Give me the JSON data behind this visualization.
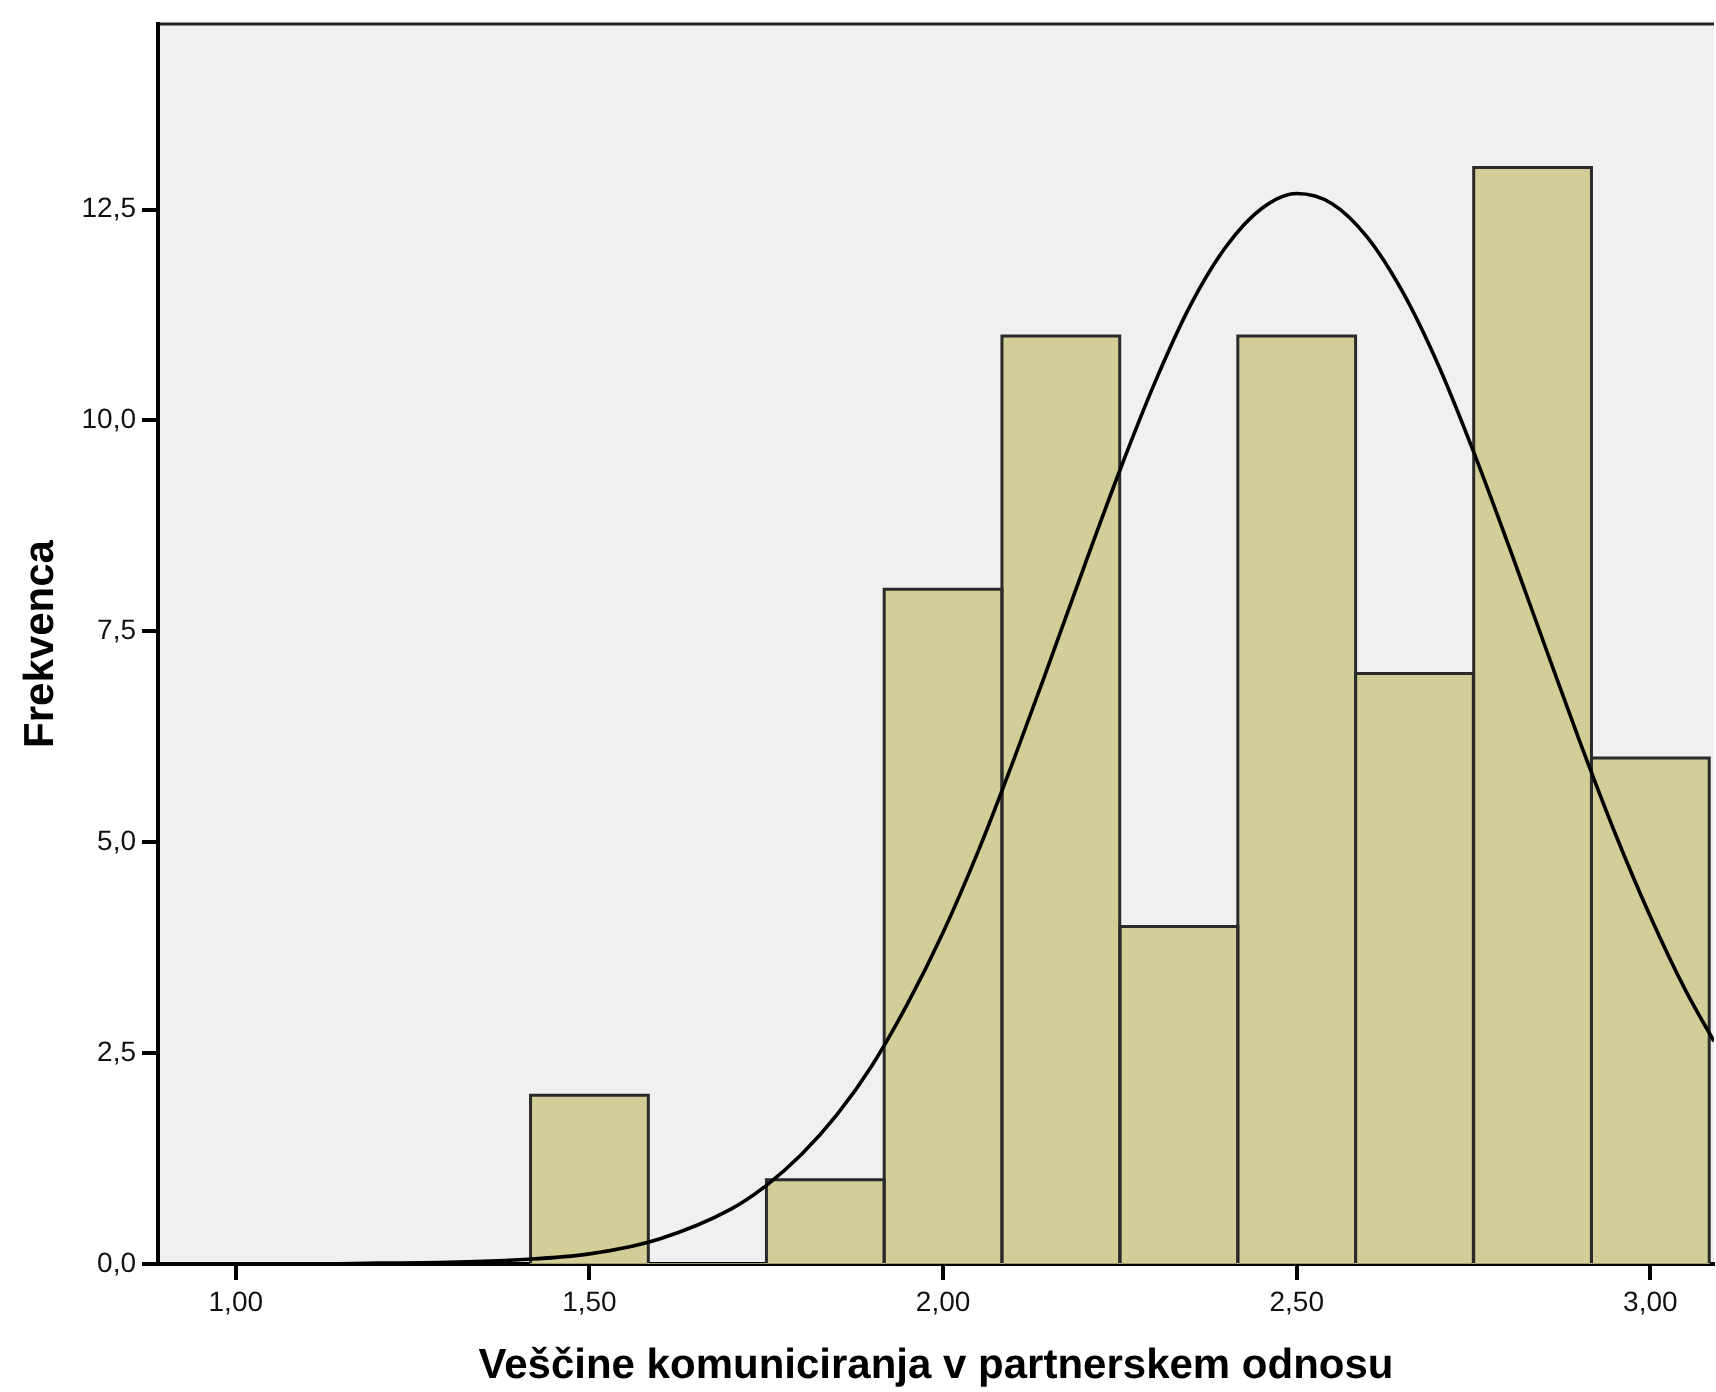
{
  "chart_data": {
    "type": "histogram",
    "xlabel": "Veščine komuniciranja v partnerskem odnosu",
    "ylabel": "Frekvenca",
    "bins": [
      1.417,
      1.583,
      1.75,
      1.917,
      2.083,
      2.25,
      2.417,
      2.583,
      2.75,
      2.917,
      3.083
    ],
    "series": [
      {
        "color": "#d3ce97",
        "values": [
          2,
          0,
          1,
          8,
          11,
          4,
          11,
          7,
          13,
          6
        ]
      },
      {
        "type": "line",
        "color": "#000000",
        "marker": "none",
        "x": [
          0.89,
          1.0,
          1.1,
          1.2,
          1.3,
          1.4,
          1.5,
          1.6,
          1.7,
          1.75,
          1.8,
          1.85,
          1.9,
          1.95,
          2.0,
          2.05,
          2.1,
          2.15,
          2.2,
          2.25,
          2.3,
          2.35,
          2.4,
          2.45,
          2.5,
          2.55,
          2.6,
          2.65,
          2.7,
          2.75,
          2.8,
          2.85,
          2.9,
          2.95,
          3.0,
          3.05,
          3.09
        ],
        "values": [
          0,
          0,
          0,
          0.01,
          0.02,
          0.05,
          0.12,
          0.3,
          0.65,
          0.93,
          1.3,
          1.77,
          2.36,
          3.09,
          3.93,
          4.9,
          5.98,
          7.12,
          8.28,
          9.41,
          10.46,
          11.37,
          12.06,
          12.51,
          12.69,
          12.57,
          12.17,
          11.52,
          10.66,
          9.63,
          8.51,
          7.35,
          6.2,
          5.11,
          4.12,
          3.24,
          2.64
        ]
      }
    ],
    "xlim": [
      0.89,
      3.09
    ],
    "ylim": [
      0,
      14.7
    ],
    "xticks": [
      {
        "value": 1,
        "label": "1,00"
      },
      {
        "value": 1.5,
        "label": "1,50"
      },
      {
        "value": 2,
        "label": "2,00"
      },
      {
        "value": 2.5,
        "label": "2,50"
      },
      {
        "value": 3,
        "label": "3,00"
      }
    ],
    "yticks": [
      {
        "value": 0,
        "label": "0,0"
      },
      {
        "value": 2.5,
        "label": "2,5"
      },
      {
        "value": 5,
        "label": "5,0"
      },
      {
        "value": 7.5,
        "label": "7,5"
      },
      {
        "value": 10,
        "label": "10,0"
      },
      {
        "value": 12.5,
        "label": "12,5"
      }
    ]
  }
}
